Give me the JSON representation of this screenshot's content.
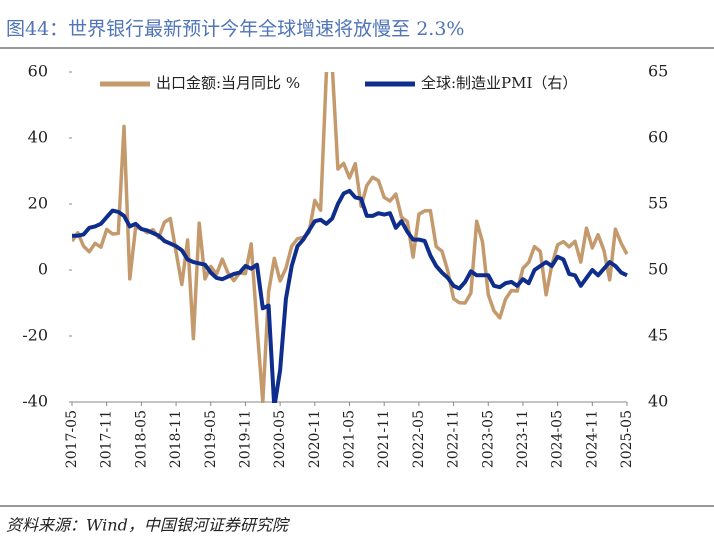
{
  "chart_data": {
    "type": "line",
    "title": "图44：世界银行最新预计今年全球增速将放慢至 2.3%",
    "source": "资料来源：Wind，中国银河证券研究院",
    "categories": [
      "2017-05",
      null,
      null,
      null,
      null,
      null,
      "2017-11",
      null,
      null,
      null,
      null,
      null,
      "2018-05",
      null,
      null,
      null,
      null,
      null,
      "2018-11",
      null,
      null,
      null,
      null,
      null,
      "2019-05",
      null,
      null,
      null,
      null,
      null,
      "2019-11",
      null,
      null,
      null,
      null,
      null,
      "2020-05",
      null,
      null,
      null,
      null,
      null,
      "2020-11",
      null,
      null,
      null,
      null,
      null,
      "2021-05",
      null,
      null,
      null,
      null,
      null,
      "2021-11",
      null,
      null,
      null,
      null,
      null,
      "2022-05",
      null,
      null,
      null,
      null,
      null,
      "2022-11",
      null,
      null,
      null,
      null,
      null,
      "2023-05",
      null,
      null,
      null,
      null,
      null,
      "2023-11",
      null,
      null,
      null,
      null,
      null,
      "2024-05",
      null,
      null,
      null,
      null,
      null,
      "2024-11",
      null,
      null,
      null,
      null,
      null,
      "2025-05"
    ],
    "series": [
      {
        "name": "出口金额:当月同比 %",
        "color": "#C49A6C",
        "values": [
          8.7,
          11.3,
          7.2,
          5.5,
          8.1,
          6.9,
          12.3,
          10.9,
          11.1,
          43.5,
          -2.7,
          12.9,
          12.6,
          11.3,
          12.2,
          9.8,
          14.5,
          15.6,
          5.4,
          -4.4,
          9.1,
          -20.8,
          14.2,
          -2.7,
          1.1,
          -1.3,
          3.3,
          -1.0,
          -3.2,
          -0.9,
          -1.1,
          7.9,
          -17,
          -40,
          -6.6,
          3.5,
          -3.3,
          0.5,
          7.2,
          9.5,
          9.9,
          11.4,
          21.1,
          18.1,
          60,
          62,
          30.6,
          32.3,
          27.9,
          32.2,
          19.3,
          25.6,
          28.1,
          27.1,
          22.0,
          20.9,
          23,
          16,
          14.7,
          3.9,
          16.9,
          17.9,
          18.0,
          7.1,
          5.7,
          -0.3,
          -8.7,
          -9.9,
          -10,
          -7,
          14.8,
          8.5,
          -7.5,
          -12.4,
          -14.5,
          -8.8,
          -6.2,
          -6.4,
          0.5,
          2.3,
          7.1,
          5.6,
          -7.5,
          1.5,
          7.6,
          8.6,
          7.0,
          8.7,
          2.4,
          12.7,
          6.7,
          10.7,
          6,
          -3,
          12.4,
          8.1,
          4.8
        ]
      },
      {
        "name": "全球:制造业PMI（右）",
        "color": "#0E2D8C",
        "axis": "y2",
        "values": [
          52.6,
          52.6,
          52.7,
          53.2,
          53.3,
          53.5,
          54.0,
          54.5,
          54.4,
          54.1,
          53.3,
          53.5,
          53.1,
          53.0,
          52.8,
          52.6,
          52.2,
          52.0,
          51.8,
          51.5,
          50.8,
          50.6,
          50.5,
          50.4,
          49.8,
          49.4,
          49.3,
          49.5,
          49.7,
          49.8,
          50.3,
          50.1,
          50.4,
          47.1,
          47.3,
          39.6,
          42.4,
          47.8,
          50.3,
          51.8,
          52.3,
          53.0,
          53.7,
          53.8,
          53.5,
          53.9,
          55.0,
          55.8,
          56.0,
          55.5,
          55.4,
          54.1,
          54.1,
          54.3,
          54.2,
          54.3,
          53.2,
          53.7,
          52.9,
          52.3,
          52.3,
          52.2,
          51.1,
          50.3,
          49.8,
          49.4,
          48.8,
          48.6,
          49.1,
          49.9,
          49.6,
          49.6,
          49.6,
          48.8,
          48.7,
          49.0,
          49.1,
          48.8,
          49.3,
          49.0,
          50.0,
          50.3,
          50.6,
          50.3,
          51.0,
          50.8,
          49.7,
          49.6,
          48.8,
          49.4,
          50.0,
          49.6,
          50.1,
          50.6,
          50.3,
          49.8,
          49.6
        ]
      }
    ],
    "ylim": [
      -40,
      60
    ],
    "yticks": [
      -40,
      -20,
      0,
      20,
      40,
      60
    ],
    "y2lim": [
      40,
      65
    ],
    "y2ticks": [
      40,
      45,
      50,
      55,
      60,
      65
    ],
    "grid": false,
    "legend": "top"
  }
}
